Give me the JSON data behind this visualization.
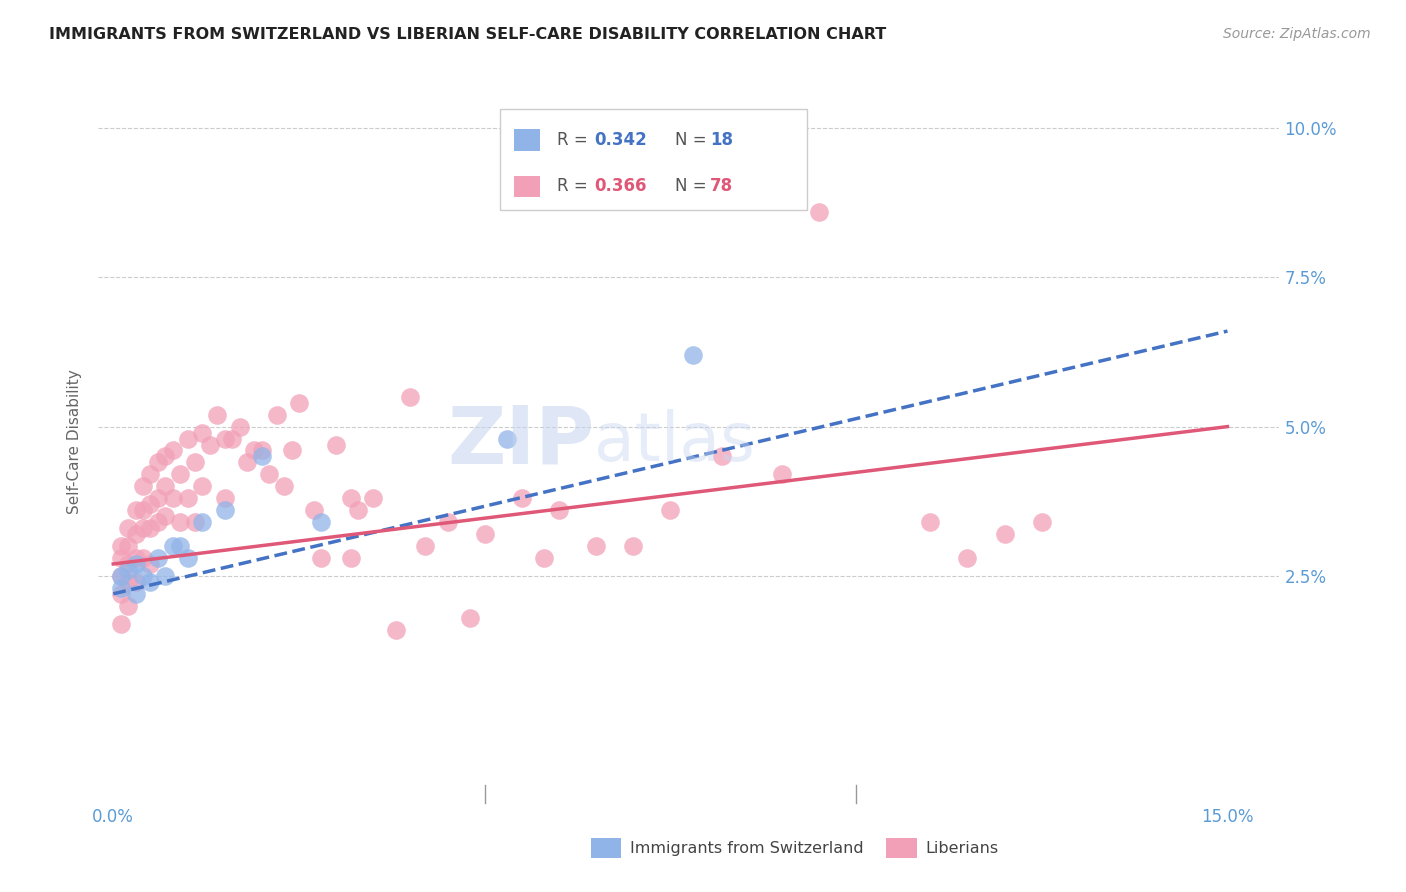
{
  "title": "IMMIGRANTS FROM SWITZERLAND VS LIBERIAN SELF-CARE DISABILITY CORRELATION CHART",
  "source": "Source: ZipAtlas.com",
  "ylabel": "Self-Care Disability",
  "xlim": [
    -0.002,
    0.157
  ],
  "ylim": [
    -0.013,
    0.108
  ],
  "yticks": [
    0.025,
    0.05,
    0.075,
    0.1
  ],
  "yticklabels": [
    "2.5%",
    "5.0%",
    "7.5%",
    "10.0%"
  ],
  "xtick_labels_show": [
    "0.0%",
    "15.0%"
  ],
  "xtick_positions_show": [
    0.0,
    0.15
  ],
  "xtick_minor": [
    0.05,
    0.1
  ],
  "right_ytick_color": "#5b9bd5",
  "legend_r1": "R = 0.342",
  "legend_n1": "N = 18",
  "legend_r2": "R = 0.366",
  "legend_n2": "N = 78",
  "swiss_color": "#90b4e8",
  "liberian_color": "#f2a0b8",
  "swiss_line_color": "#4472c4",
  "liberian_line_color": "#e05878",
  "watermark": "ZIPatlas",
  "swiss_line_start_y": 0.022,
  "swiss_line_end_y": 0.066,
  "swiss_line_x_start": 0.0,
  "swiss_line_x_end": 0.15,
  "lib_line_start_y": 0.027,
  "lib_line_end_y": 0.05,
  "lib_line_x_start": 0.0,
  "lib_line_x_end": 0.15,
  "swiss_x": [
    0.001,
    0.001,
    0.002,
    0.003,
    0.003,
    0.004,
    0.005,
    0.006,
    0.007,
    0.008,
    0.009,
    0.01,
    0.012,
    0.015,
    0.02,
    0.028,
    0.053,
    0.078
  ],
  "swiss_y": [
    0.025,
    0.023,
    0.026,
    0.022,
    0.027,
    0.025,
    0.024,
    0.028,
    0.025,
    0.03,
    0.03,
    0.028,
    0.034,
    0.036,
    0.045,
    0.034,
    0.048,
    0.062
  ],
  "lib_x": [
    0.001,
    0.001,
    0.001,
    0.001,
    0.001,
    0.002,
    0.002,
    0.002,
    0.002,
    0.002,
    0.003,
    0.003,
    0.003,
    0.003,
    0.004,
    0.004,
    0.004,
    0.004,
    0.005,
    0.005,
    0.005,
    0.005,
    0.006,
    0.006,
    0.006,
    0.007,
    0.007,
    0.007,
    0.008,
    0.008,
    0.009,
    0.009,
    0.01,
    0.01,
    0.011,
    0.011,
    0.012,
    0.012,
    0.013,
    0.014,
    0.015,
    0.015,
    0.016,
    0.017,
    0.018,
    0.019,
    0.02,
    0.021,
    0.022,
    0.023,
    0.024,
    0.025,
    0.027,
    0.028,
    0.03,
    0.032,
    0.032,
    0.033,
    0.035,
    0.038,
    0.04,
    0.042,
    0.045,
    0.048,
    0.05,
    0.055,
    0.058,
    0.06,
    0.065,
    0.07,
    0.075,
    0.082,
    0.09,
    0.095,
    0.11,
    0.115,
    0.12,
    0.125
  ],
  "lib_y": [
    0.03,
    0.028,
    0.025,
    0.022,
    0.017,
    0.033,
    0.03,
    0.027,
    0.024,
    0.02,
    0.036,
    0.032,
    0.028,
    0.024,
    0.04,
    0.036,
    0.033,
    0.028,
    0.042,
    0.037,
    0.033,
    0.027,
    0.044,
    0.038,
    0.034,
    0.045,
    0.04,
    0.035,
    0.046,
    0.038,
    0.042,
    0.034,
    0.048,
    0.038,
    0.044,
    0.034,
    0.049,
    0.04,
    0.047,
    0.052,
    0.048,
    0.038,
    0.048,
    0.05,
    0.044,
    0.046,
    0.046,
    0.042,
    0.052,
    0.04,
    0.046,
    0.054,
    0.036,
    0.028,
    0.047,
    0.038,
    0.028,
    0.036,
    0.038,
    0.016,
    0.055,
    0.03,
    0.034,
    0.018,
    0.032,
    0.038,
    0.028,
    0.036,
    0.03,
    0.03,
    0.036,
    0.045,
    0.042,
    0.086,
    0.034,
    0.028,
    0.032,
    0.034
  ]
}
